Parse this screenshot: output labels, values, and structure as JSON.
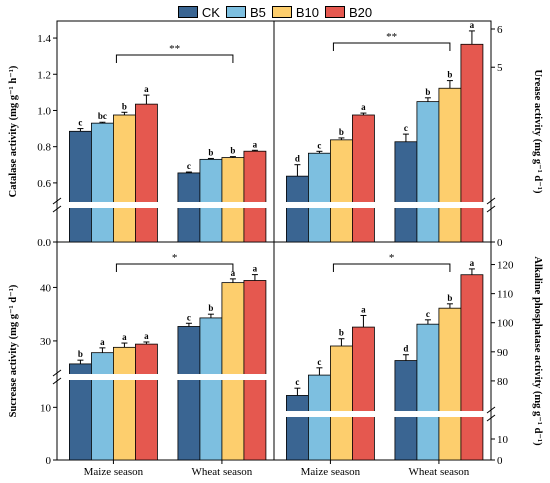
{
  "legend": [
    {
      "label": "CK",
      "color": "#3a6592"
    },
    {
      "label": "B5",
      "color": "#7dbfe0"
    },
    {
      "label": "B10",
      "color": "#fdce6d"
    },
    {
      "label": "B20",
      "color": "#e5584f"
    }
  ],
  "chart_data": [
    {
      "type": "bar",
      "ylabel": "Catalase activity (mg g⁻¹ h⁻¹)",
      "y_axis_side": "left",
      "axis_break": true,
      "ylim_lower": [
        0,
        0.4
      ],
      "ylim_upper": [
        0.5,
        1.45
      ],
      "yticks_lower": [
        "0.0"
      ],
      "yticks_upper": [
        "0.6",
        "0.8",
        "1.0",
        "1.2",
        "1.4"
      ],
      "categories": [
        "Maize season",
        "Wheat season"
      ],
      "series": [
        {
          "name": "CK",
          "values": [
            0.885,
            0.655
          ],
          "errors": [
            0.015,
            0.005
          ],
          "letters": [
            "c",
            "c"
          ]
        },
        {
          "name": "B5",
          "values": [
            0.93,
            0.73
          ],
          "errors": [
            0.005,
            0.005
          ],
          "letters": [
            "bc",
            "b"
          ]
        },
        {
          "name": "B10",
          "values": [
            0.975,
            0.74
          ],
          "errors": [
            0.015,
            0.005
          ],
          "letters": [
            "b",
            "b"
          ]
        },
        {
          "name": "B20",
          "values": [
            1.035,
            0.775
          ],
          "errors": [
            0.05,
            0.005
          ],
          "letters": [
            "a",
            "a"
          ]
        }
      ],
      "significance": "**"
    },
    {
      "type": "bar",
      "ylabel": "Urease activity (mg g⁻¹ d⁻¹)",
      "y_axis_side": "right",
      "axis_break": true,
      "ylim_lower": [
        0,
        0.8
      ],
      "ylim_upper": [
        1.5,
        6.0
      ],
      "yticks_lower": [
        "0"
      ],
      "yticks_upper": [
        "5",
        "6"
      ],
      "categories": [
        "Maize season",
        "Wheat season"
      ],
      "series": [
        {
          "name": "CK",
          "values": [
            2.15,
            3.05
          ],
          "errors": [
            0.3,
            0.2
          ],
          "letters": [
            "d",
            "c"
          ]
        },
        {
          "name": "B5",
          "values": [
            2.75,
            4.1
          ],
          "errors": [
            0.05,
            0.1
          ],
          "letters": [
            "c",
            "b"
          ]
        },
        {
          "name": "B10",
          "values": [
            3.1,
            4.45
          ],
          "errors": [
            0.05,
            0.2
          ],
          "letters": [
            "b",
            "b"
          ]
        },
        {
          "name": "B20",
          "values": [
            3.75,
            5.6
          ],
          "errors": [
            0.05,
            0.35
          ],
          "letters": [
            "a",
            "a"
          ]
        }
      ],
      "significance": "**"
    },
    {
      "type": "bar",
      "ylabel": "Sucrease activity (mg g⁻¹ d⁻¹)",
      "y_axis_side": "left",
      "axis_break": true,
      "ylim_lower": [
        0,
        15
      ],
      "ylim_upper": [
        24,
        47
      ],
      "yticks_lower": [
        "0",
        "10"
      ],
      "yticks_upper": [
        "30",
        "40"
      ],
      "categories": [
        "Maize season",
        "Wheat season"
      ],
      "series": [
        {
          "name": "CK",
          "values": [
            25.7,
            32.7
          ],
          "errors": [
            0.7,
            0.6
          ],
          "letters": [
            "b",
            "c"
          ]
        },
        {
          "name": "B5",
          "values": [
            27.8,
            34.3
          ],
          "errors": [
            0.9,
            0.7
          ],
          "letters": [
            "a",
            "b"
          ]
        },
        {
          "name": "B10",
          "values": [
            28.8,
            40.9
          ],
          "errors": [
            0.8,
            0.7
          ],
          "letters": [
            "a",
            "a"
          ]
        },
        {
          "name": "B20",
          "values": [
            29.4,
            41.3
          ],
          "errors": [
            0.4,
            1.1
          ],
          "letters": [
            "a",
            "a"
          ]
        }
      ],
      "significance": "*"
    },
    {
      "type": "bar",
      "ylabel": "Alkaline phosphatase activity (mg g⁻¹ d⁻¹)",
      "y_axis_side": "right",
      "axis_break": true,
      "ylim_lower": [
        0,
        20
      ],
      "ylim_upper": [
        70,
        125
      ],
      "yticks_lower": [
        "0",
        "10"
      ],
      "yticks_upper": [
        "80",
        "90",
        "100",
        "110",
        "120"
      ],
      "categories": [
        "Maize season",
        "Wheat season"
      ],
      "series": [
        {
          "name": "CK",
          "values": [
            75,
            87
          ],
          "errors": [
            2.5,
            2
          ],
          "letters": [
            "c",
            "d"
          ]
        },
        {
          "name": "B5",
          "values": [
            82,
            99.5
          ],
          "errors": [
            2.5,
            1.5
          ],
          "letters": [
            "c",
            "c"
          ]
        },
        {
          "name": "B10",
          "values": [
            92,
            105
          ],
          "errors": [
            2.5,
            1.5
          ],
          "letters": [
            "b",
            "b"
          ]
        },
        {
          "name": "B20",
          "values": [
            98.5,
            116.5
          ],
          "errors": [
            4,
            2
          ],
          "letters": [
            "a",
            "a"
          ]
        }
      ],
      "significance": "*"
    }
  ],
  "xaxis_labels": [
    "Maize season",
    "Wheat season"
  ]
}
